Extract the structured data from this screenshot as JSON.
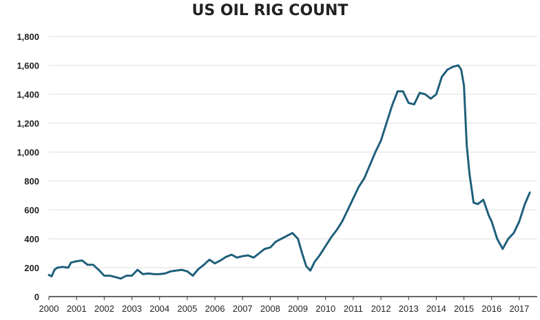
{
  "chart_data": {
    "type": "line",
    "title": "US OIL RIG COUNT",
    "xlabel": "",
    "ylabel": "",
    "ylim": [
      0,
      1800
    ],
    "xlim": [
      2000,
      2017.4
    ],
    "grid": true,
    "line_color": "#1f5f7a",
    "y_ticks": [
      "0",
      "200",
      "400",
      "600",
      "800",
      "1,000",
      "1,200",
      "1,400",
      "1,600",
      "1,800"
    ],
    "y_tick_values": [
      0,
      200,
      400,
      600,
      800,
      1000,
      1200,
      1400,
      1600,
      1800
    ],
    "x_ticks": [
      "2000",
      "2001",
      "2002",
      "2003",
      "2004",
      "2005",
      "2006",
      "2007",
      "2008",
      "2009",
      "2010",
      "2011",
      "2012",
      "2013",
      "2014",
      "2015",
      "2016",
      "2017"
    ],
    "x_tick_values": [
      2000,
      2001,
      2002,
      2003,
      2004,
      2005,
      2006,
      2007,
      2008,
      2009,
      2010,
      2011,
      2012,
      2013,
      2014,
      2015,
      2016,
      2017
    ],
    "series": [
      {
        "x": [
          2000.0,
          2000.1,
          2000.2,
          2000.3,
          2000.5,
          2000.7,
          2000.8,
          2001.0,
          2001.2,
          2001.4,
          2001.6,
          2001.8,
          2002.0,
          2002.2,
          2002.4,
          2002.6,
          2002.8,
          2003.0,
          2003.2,
          2003.4,
          2003.6,
          2003.8,
          2004.0,
          2004.2,
          2004.4,
          2004.6,
          2004.8,
          2005.0,
          2005.2,
          2005.4,
          2005.6,
          2005.8,
          2006.0,
          2006.2,
          2006.4,
          2006.6,
          2006.8,
          2007.0,
          2007.2,
          2007.4,
          2007.6,
          2007.8,
          2008.0,
          2008.2,
          2008.4,
          2008.6,
          2008.8,
          2009.0,
          2009.15,
          2009.3,
          2009.45,
          2009.6,
          2009.8,
          2010.0,
          2010.2,
          2010.4,
          2010.6,
          2010.8,
          2011.0,
          2011.2,
          2011.4,
          2011.6,
          2011.8,
          2012.0,
          2012.2,
          2012.4,
          2012.6,
          2012.8,
          2013.0,
          2013.2,
          2013.4,
          2013.6,
          2013.8,
          2014.0,
          2014.2,
          2014.4,
          2014.6,
          2014.8,
          2014.9,
          2015.0,
          2015.1,
          2015.2,
          2015.35,
          2015.5,
          2015.7,
          2015.9,
          2016.0,
          2016.2,
          2016.4,
          2016.6,
          2016.8,
          2017.0,
          2017.2,
          2017.38
        ],
        "values": [
          150,
          140,
          185,
          200,
          205,
          200,
          235,
          245,
          250,
          220,
          220,
          185,
          145,
          145,
          135,
          125,
          145,
          145,
          185,
          155,
          160,
          155,
          155,
          160,
          175,
          180,
          185,
          175,
          145,
          190,
          220,
          255,
          230,
          250,
          275,
          290,
          270,
          280,
          285,
          270,
          300,
          330,
          340,
          380,
          400,
          420,
          440,
          400,
          300,
          210,
          180,
          240,
          290,
          350,
          410,
          460,
          520,
          600,
          680,
          760,
          820,
          910,
          1000,
          1080,
          1200,
          1320,
          1420,
          1420,
          1340,
          1330,
          1410,
          1400,
          1370,
          1400,
          1520,
          1570,
          1590,
          1600,
          1570,
          1460,
          1050,
          850,
          650,
          640,
          670,
          560,
          520,
          400,
          330,
          400,
          440,
          520,
          640,
          720
        ]
      }
    ]
  }
}
